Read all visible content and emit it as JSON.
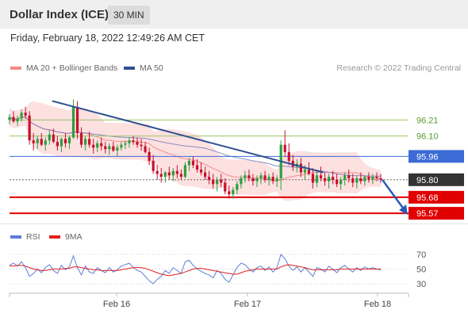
{
  "header": {
    "title": "Dollar Index (ICE)",
    "timeframe": "30 MIN"
  },
  "datetime": "Friday, February 18, 2022 12:49:26 AM CET",
  "legend": {
    "ma20_bb": {
      "label": "MA 20 + Bollinger Bands",
      "color": "#f48b8b"
    },
    "ma50": {
      "label": "MA 50",
      "color": "#2e4f8f"
    },
    "credit": "Research © 2022 Trading Central"
  },
  "rsi_legend": {
    "rsi": {
      "label": "RSI",
      "color": "#5b7fd6"
    },
    "ma9": {
      "label": "9MA",
      "color": "#e02020"
    }
  },
  "colors": {
    "up": "#2e9e3e",
    "down": "#c8102e",
    "band_fill": "#fde0e0",
    "ma20": "#f48b8b",
    "ma50": "#6a76b8",
    "trendline": "#2e4f8f",
    "resistance_green": "#9cc768",
    "support_red": "#e00000",
    "current": "#333333"
  },
  "chart_data": {
    "type": "candlestick",
    "instrument": "Dollar Index (ICE)",
    "interval": "30 MIN",
    "x_ticks": [
      "Feb 16",
      "Feb 17",
      "Feb 18"
    ],
    "ylim": [
      95.5,
      96.5
    ],
    "levels": [
      {
        "value": "96.21",
        "kind": "resistance",
        "style": "green-line"
      },
      {
        "value": "96.10",
        "kind": "resistance",
        "style": "green-line"
      },
      {
        "value": "95.96",
        "kind": "pivot",
        "style": "blue-label"
      },
      {
        "value": "95.80",
        "kind": "current",
        "style": "dark-label"
      },
      {
        "value": "95.68",
        "kind": "support",
        "style": "red-label"
      },
      {
        "value": "95.57",
        "kind": "support",
        "style": "red-label"
      }
    ],
    "trendline_points": [
      [
        0.115,
        96.34
      ],
      [
        0.845,
        95.85
      ]
    ],
    "projection": {
      "from": 95.8,
      "to": 95.57
    },
    "candles_o_h_l_c": [
      [
        96.21,
        96.25,
        96.18,
        96.23
      ],
      [
        96.23,
        96.27,
        96.19,
        96.2
      ],
      [
        96.2,
        96.24,
        96.17,
        96.22
      ],
      [
        96.22,
        96.28,
        96.2,
        96.26
      ],
      [
        96.26,
        96.3,
        96.22,
        96.24
      ],
      [
        96.24,
        96.27,
        96.04,
        96.07
      ],
      [
        96.07,
        96.12,
        96.0,
        96.05
      ],
      [
        96.05,
        96.1,
        96.01,
        96.08
      ],
      [
        96.08,
        96.12,
        96.03,
        96.04
      ],
      [
        96.04,
        96.09,
        96.0,
        96.07
      ],
      [
        96.07,
        96.14,
        96.04,
        96.11
      ],
      [
        96.11,
        96.15,
        96.05,
        96.06
      ],
      [
        96.06,
        96.1,
        96.0,
        96.03
      ],
      [
        96.03,
        96.09,
        95.99,
        96.08
      ],
      [
        96.08,
        96.12,
        96.02,
        96.05
      ],
      [
        96.05,
        96.1,
        96.01,
        96.09
      ],
      [
        96.09,
        96.35,
        96.08,
        96.3
      ],
      [
        96.3,
        96.34,
        96.08,
        96.12
      ],
      [
        96.12,
        96.16,
        96.02,
        96.04
      ],
      [
        96.04,
        96.1,
        96.0,
        96.08
      ],
      [
        96.08,
        96.13,
        96.02,
        96.04
      ],
      [
        96.04,
        96.08,
        95.98,
        96.02
      ],
      [
        96.02,
        96.07,
        95.99,
        96.05
      ],
      [
        96.05,
        96.09,
        96.0,
        96.03
      ],
      [
        96.03,
        96.06,
        95.98,
        96.01
      ],
      [
        96.01,
        96.05,
        95.97,
        96.03
      ],
      [
        96.03,
        96.06,
        95.99,
        96.0
      ],
      [
        96.0,
        96.04,
        95.96,
        96.02
      ],
      [
        96.02,
        96.06,
        96.0,
        96.04
      ],
      [
        96.04,
        96.07,
        96.01,
        96.05
      ],
      [
        96.05,
        96.09,
        96.02,
        96.07
      ],
      [
        96.07,
        96.1,
        96.04,
        96.06
      ],
      [
        96.06,
        96.09,
        96.02,
        96.04
      ],
      [
        96.04,
        96.08,
        96.0,
        96.03
      ],
      [
        96.03,
        96.06,
        95.98,
        95.99
      ],
      [
        95.99,
        96.02,
        95.9,
        95.93
      ],
      [
        95.93,
        95.97,
        95.84,
        95.86
      ],
      [
        95.86,
        95.9,
        95.8,
        95.84
      ],
      [
        95.84,
        95.88,
        95.78,
        95.82
      ],
      [
        95.82,
        95.86,
        95.78,
        95.85
      ],
      [
        95.85,
        95.89,
        95.8,
        95.83
      ],
      [
        95.83,
        95.88,
        95.79,
        95.86
      ],
      [
        95.86,
        95.9,
        95.81,
        95.84
      ],
      [
        95.84,
        95.87,
        95.8,
        95.82
      ],
      [
        95.82,
        95.92,
        95.81,
        95.9
      ],
      [
        95.9,
        95.95,
        95.86,
        95.93
      ],
      [
        95.93,
        95.96,
        95.88,
        95.9
      ],
      [
        95.9,
        95.94,
        95.85,
        95.87
      ],
      [
        95.87,
        95.92,
        95.83,
        95.85
      ],
      [
        95.85,
        95.89,
        95.8,
        95.82
      ],
      [
        95.82,
        95.86,
        95.77,
        95.8
      ],
      [
        95.8,
        95.84,
        95.74,
        95.77
      ],
      [
        95.77,
        95.82,
        95.72,
        95.8
      ],
      [
        95.8,
        95.84,
        95.75,
        95.78
      ],
      [
        95.78,
        95.81,
        95.7,
        95.72
      ],
      [
        95.72,
        95.76,
        95.67,
        95.7
      ],
      [
        95.7,
        95.75,
        95.67,
        95.73
      ],
      [
        95.73,
        95.79,
        95.7,
        95.77
      ],
      [
        95.77,
        95.83,
        95.74,
        95.81
      ],
      [
        95.81,
        95.86,
        95.78,
        95.83
      ],
      [
        95.83,
        95.87,
        95.79,
        95.81
      ],
      [
        95.81,
        95.84,
        95.76,
        95.79
      ],
      [
        95.79,
        95.83,
        95.75,
        95.81
      ],
      [
        95.81,
        95.85,
        95.77,
        95.83
      ],
      [
        95.83,
        95.86,
        95.78,
        95.8
      ],
      [
        95.8,
        95.84,
        95.76,
        95.82
      ],
      [
        95.82,
        95.85,
        95.77,
        95.79
      ],
      [
        95.79,
        95.83,
        95.75,
        95.81
      ],
      [
        95.81,
        96.07,
        95.73,
        96.04
      ],
      [
        96.04,
        96.14,
        95.96,
        95.99
      ],
      [
        95.99,
        96.05,
        95.9,
        95.93
      ],
      [
        95.93,
        95.97,
        95.86,
        95.89
      ],
      [
        95.89,
        95.94,
        95.85,
        95.91
      ],
      [
        95.91,
        95.95,
        95.82,
        95.85
      ],
      [
        95.85,
        95.9,
        95.8,
        95.87
      ],
      [
        95.87,
        95.92,
        95.83,
        95.84
      ],
      [
        95.84,
        95.88,
        95.74,
        95.78
      ],
      [
        95.78,
        95.86,
        95.75,
        95.83
      ],
      [
        95.83,
        95.89,
        95.79,
        95.81
      ],
      [
        95.81,
        95.85,
        95.76,
        95.79
      ],
      [
        95.79,
        95.84,
        95.74,
        95.82
      ],
      [
        95.82,
        95.86,
        95.77,
        95.8
      ],
      [
        95.8,
        95.84,
        95.75,
        95.77
      ],
      [
        95.77,
        95.82,
        95.73,
        95.8
      ],
      [
        95.8,
        95.85,
        95.76,
        95.83
      ],
      [
        95.83,
        95.87,
        95.78,
        95.81
      ],
      [
        95.81,
        95.84,
        95.75,
        95.78
      ],
      [
        95.78,
        95.83,
        95.74,
        95.81
      ],
      [
        95.81,
        95.85,
        95.77,
        95.79
      ],
      [
        95.79,
        95.83,
        95.76,
        95.82
      ],
      [
        95.82,
        95.85,
        95.78,
        95.8
      ],
      [
        95.8,
        95.84,
        95.77,
        95.82
      ],
      [
        95.82,
        95.85,
        95.79,
        95.81
      ],
      [
        95.81,
        95.84,
        95.78,
        95.8
      ]
    ],
    "rsi": {
      "ticks": [
        "70",
        "50",
        "30"
      ],
      "values": [
        55,
        58,
        54,
        60,
        52,
        40,
        44,
        50,
        45,
        52,
        56,
        48,
        44,
        55,
        49,
        53,
        68,
        52,
        42,
        54,
        46,
        44,
        52,
        48,
        45,
        52,
        46,
        49,
        54,
        56,
        58,
        52,
        48,
        46,
        40,
        34,
        30,
        36,
        40,
        48,
        44,
        52,
        48,
        44,
        60,
        62,
        55,
        50,
        47,
        44,
        42,
        38,
        48,
        44,
        36,
        32,
        42,
        52,
        58,
        56,
        50,
        46,
        52,
        54,
        48,
        53,
        46,
        52,
        70,
        64,
        54,
        48,
        53,
        46,
        52,
        46,
        40,
        52,
        50,
        46,
        54,
        50,
        45,
        52,
        55,
        50,
        46,
        52,
        48,
        53,
        50,
        52,
        50,
        49
      ],
      "ma9": [
        54,
        54,
        55,
        55,
        54,
        52,
        50,
        49,
        48,
        48,
        49,
        50,
        50,
        50,
        51,
        51,
        53,
        53,
        52,
        51,
        50,
        49,
        49,
        48,
        48,
        48,
        48,
        48,
        49,
        50,
        51,
        52,
        52,
        52,
        51,
        49,
        47,
        45,
        43,
        42,
        41,
        42,
        43,
        44,
        46,
        48,
        50,
        51,
        51,
        50,
        49,
        48,
        47,
        46,
        45,
        44,
        43,
        43,
        45,
        47,
        48,
        49,
        50,
        50,
        50,
        50,
        50,
        50,
        53,
        55,
        56,
        55,
        54,
        53,
        52,
        50,
        49,
        49,
        49,
        49,
        49,
        49,
        49,
        50,
        50,
        50,
        50,
        50,
        50,
        50,
        50,
        50,
        50,
        50
      ]
    }
  }
}
